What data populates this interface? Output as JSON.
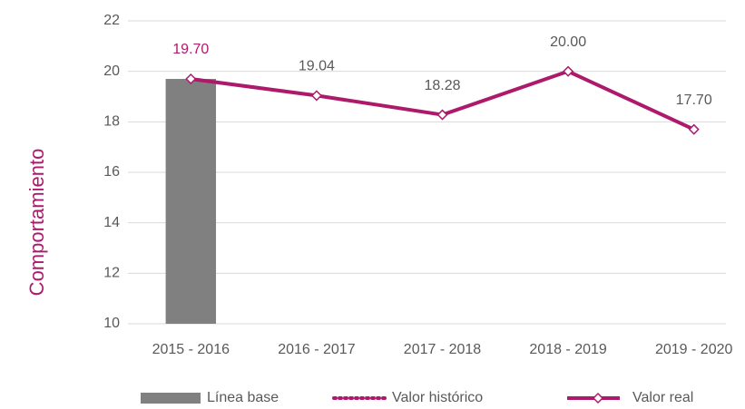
{
  "chart_data": {
    "type": "line",
    "y_label": "Comportamiento",
    "categories": [
      "2015 - 2016",
      "2016 - 2017",
      "2017 - 2018",
      "2018 - 2019",
      "2019 - 2020"
    ],
    "series": [
      {
        "name": "Línea base",
        "type": "bar",
        "color": "#808080",
        "values": [
          19.7,
          null,
          null,
          null,
          null
        ]
      },
      {
        "name": "Valor histórico",
        "type": "line",
        "style": "dotted",
        "color": "#ad1a6c",
        "values": [
          19.7,
          null,
          null,
          null,
          null
        ],
        "value_labels": [
          "19.70",
          null,
          null,
          null,
          null
        ]
      },
      {
        "name": "Valor real",
        "type": "line",
        "style": "solid",
        "marker": "diamond",
        "color": "#ad1a6c",
        "values": [
          19.7,
          19.04,
          18.28,
          20.0,
          17.7
        ],
        "value_labels": [
          null,
          "19.04",
          "18.28",
          "20.00",
          "17.70"
        ]
      }
    ],
    "ylim": [
      10,
      22
    ],
    "yticks": [
      10,
      12,
      14,
      16,
      18,
      20,
      22
    ],
    "grid": true,
    "legend": "bottom"
  }
}
